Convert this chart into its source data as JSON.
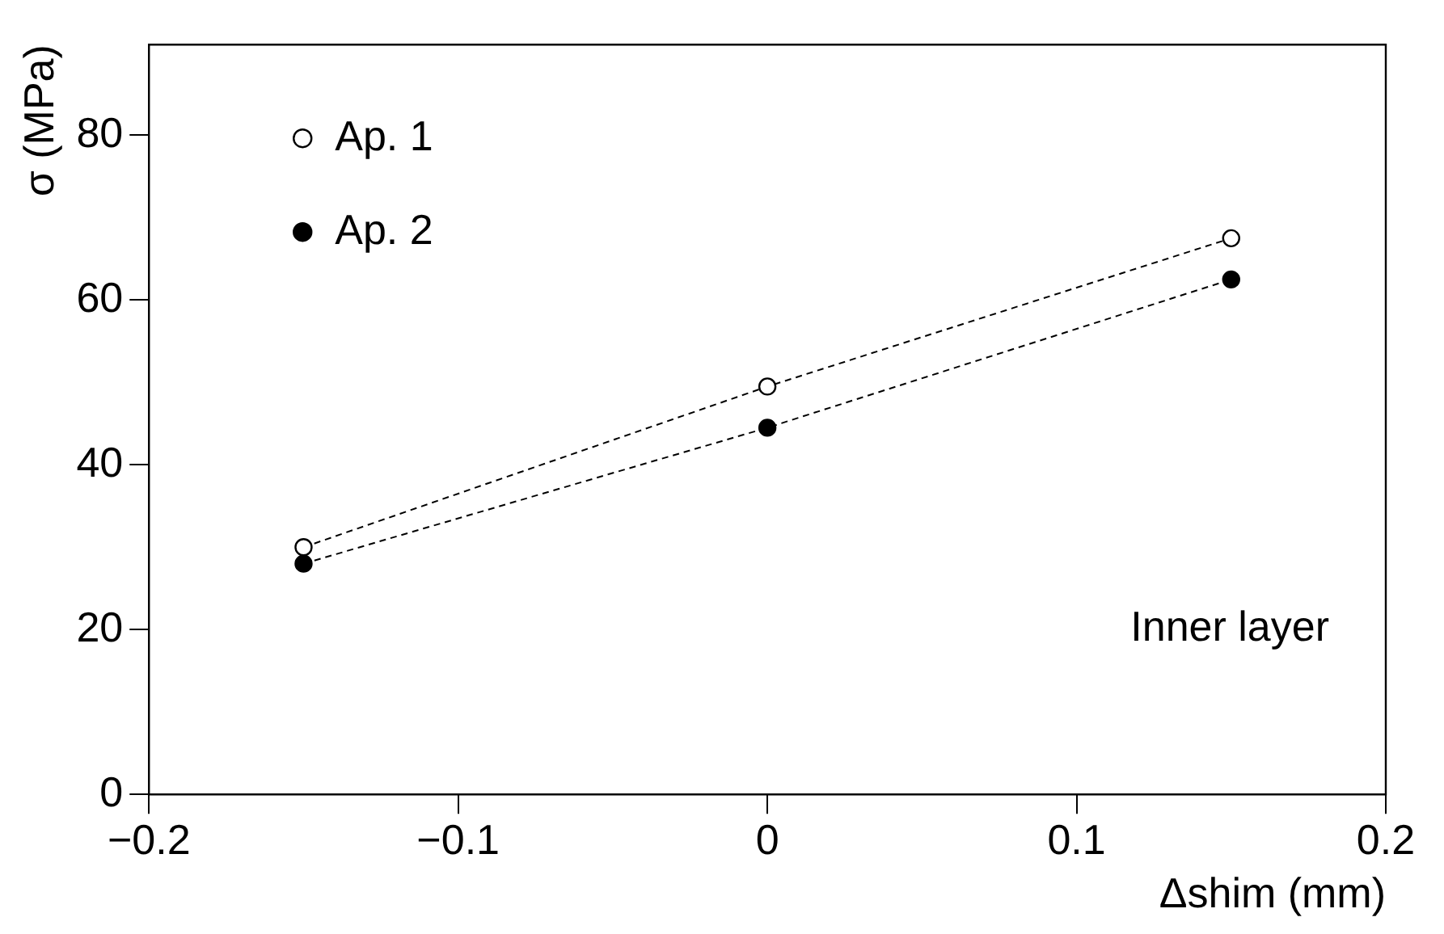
{
  "chart_data": {
    "type": "line",
    "xlabel": "Δshim (mm)",
    "ylabel": "σ (MPa)",
    "xlim": [
      -0.2,
      0.2
    ],
    "xticks": [
      {
        "value": -0.2,
        "label": "−0.2"
      },
      {
        "value": -0.1,
        "label": "−0.1"
      },
      0,
      0.1,
      0.2
    ],
    "ylim": [
      0,
      91
    ],
    "yticks": [
      0,
      20,
      40,
      60,
      80
    ],
    "grid": false,
    "legend": "top left",
    "marker": "circle",
    "line_style": "dashed",
    "annotations": [
      "Inner layer"
    ],
    "series": [
      {
        "name": "Ap. 1",
        "color": "#000000",
        "x": [
          -0.15,
          0,
          0.15
        ],
        "values": [
          30,
          49.5,
          67.5
        ]
      },
      {
        "name": "Ap. 2",
        "color": "#000000",
        "x": [
          -0.15,
          0,
          0.15
        ],
        "values": [
          28,
          44.5,
          62.5
        ]
      }
    ]
  }
}
